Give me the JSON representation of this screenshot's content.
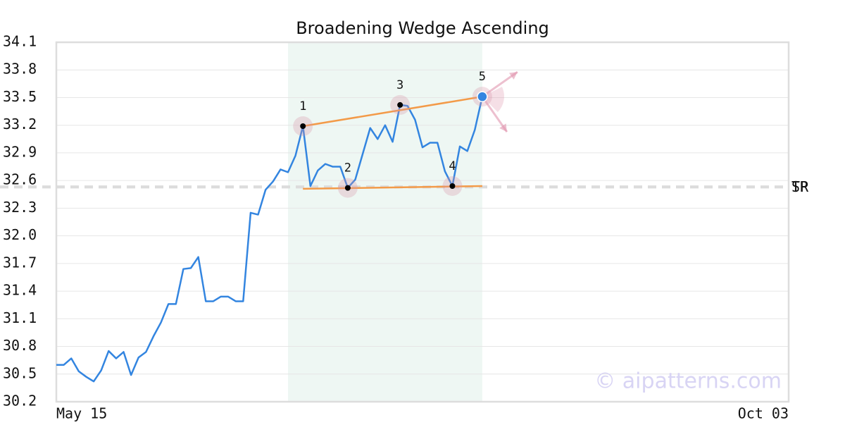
{
  "chart_data": {
    "type": "line",
    "title": "Broadening Wedge Ascending",
    "watermark": "© aipatterns.com",
    "categories": [
      "May 15",
      null,
      null,
      null,
      null,
      null,
      null,
      null,
      null,
      null,
      null,
      null,
      null,
      null,
      null,
      null,
      null,
      null,
      null,
      null,
      null,
      null,
      null,
      null,
      null,
      null,
      null,
      null,
      null,
      null,
      null,
      null,
      null,
      null,
      null,
      null,
      null,
      null,
      null,
      null,
      null,
      null,
      null,
      null,
      null,
      null,
      null,
      null,
      null,
      null,
      null,
      null,
      null,
      null,
      null,
      null,
      null,
      null,
      null,
      null,
      null,
      null,
      null,
      null,
      null,
      null,
      null,
      null,
      null,
      null,
      null,
      null,
      null,
      null,
      null,
      null,
      null,
      null,
      null,
      null,
      null,
      null,
      null,
      null,
      null,
      null,
      null,
      null,
      null,
      null,
      null,
      null,
      null,
      null,
      null,
      null,
      null,
      null,
      "Oct 03"
    ],
    "series": [
      {
        "color": "#3385e0",
        "values": [
          30.6,
          30.6,
          30.67,
          30.53,
          30.47,
          30.42,
          30.54,
          30.75,
          30.67,
          30.74,
          30.49,
          30.68,
          30.74,
          30.91,
          31.06,
          31.26,
          31.26,
          31.64,
          31.65,
          31.77,
          31.29,
          31.29,
          31.34,
          31.34,
          31.29,
          31.29,
          32.25,
          32.23,
          32.5,
          32.59,
          32.72,
          32.69,
          32.87,
          33.19,
          32.54,
          32.71,
          32.78,
          32.75,
          32.75,
          32.52,
          32.61,
          32.89,
          33.17,
          33.05,
          33.2,
          33.02,
          33.42,
          33.41,
          33.26,
          32.96,
          33.01,
          33.01,
          32.7,
          32.54,
          32.97,
          32.92,
          33.15,
          33.51,
          null,
          null,
          null,
          null,
          null,
          null,
          null,
          null,
          null,
          null,
          null,
          null,
          null,
          null,
          null,
          null,
          null,
          null,
          null,
          null,
          null,
          null,
          null,
          null,
          null,
          null,
          null,
          null,
          null,
          null,
          null,
          null,
          null,
          null,
          null,
          null,
          null,
          null,
          null,
          null,
          null
        ]
      }
    ],
    "ylim": [
      30.2,
      34.1
    ],
    "yticks": [
      30.2,
      30.5,
      30.8,
      31.1,
      31.4,
      31.7,
      {
        "value": 32,
        "label": "32.0"
      },
      32.3,
      32.6,
      32.9,
      33.2,
      33.5,
      33.8,
      34.1
    ],
    "grid": true,
    "highlight": {
      "from": 31,
      "to": 57,
      "color": "#eef7f3"
    },
    "trendlines": [
      {
        "from": 33,
        "to": 57,
        "values": [
          33.19,
          33.51
        ],
        "color": "#f39a48"
      },
      {
        "from": 33,
        "to": 57,
        "values": [
          32.51,
          32.54
        ],
        "color": "#f39a48"
      }
    ],
    "pattern_points": [
      {
        "label": "1",
        "index": 33,
        "value": 33.19
      },
      {
        "label": "2",
        "index": 39,
        "value": 32.52
      },
      {
        "label": "3",
        "index": 46,
        "value": 33.42
      },
      {
        "label": "4",
        "index": 53,
        "value": 32.54
      },
      {
        "label": "5",
        "index": 57,
        "value": 33.51
      }
    ],
    "reference_lines": [
      {
        "label": "TP",
        "value": 32.53
      },
      {
        "label": "SR",
        "value": 32.53
      }
    ]
  }
}
